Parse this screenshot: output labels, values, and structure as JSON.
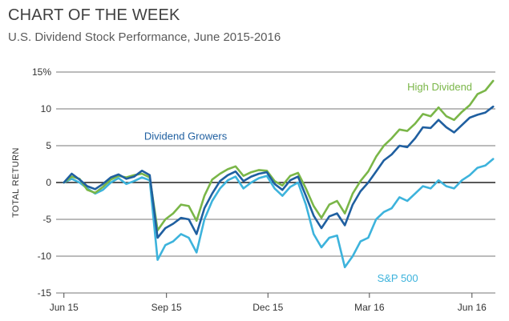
{
  "header": {
    "kicker": "CHART OF THE WEEK",
    "subtitle": "U.S. Dividend Stock Performance, June 2015-2016"
  },
  "chart_data": {
    "type": "line",
    "title": "CHART OF THE WEEK",
    "subtitle": "U.S. Dividend Stock Performance, June 2015-2016",
    "xlabel": "",
    "ylabel": "TOTAL RETURN",
    "ylim": [
      -15,
      15
    ],
    "xlim": [
      "2015-05-25",
      "2016-06-22"
    ],
    "y_ticks": [
      -15,
      -10,
      -5,
      0,
      5,
      10,
      15
    ],
    "y_tick_labels": [
      "-15",
      "-10",
      "-5",
      "0",
      "5",
      "10",
      "15%"
    ],
    "x_ticks": [
      "2015-06-01",
      "2015-09-01",
      "2015-12-01",
      "2016-03-01",
      "2016-06-01"
    ],
    "x_tick_labels": [
      "Jun 15",
      "Sep 15",
      "Dec 15",
      "Mar 16",
      "Jun 16"
    ],
    "grid": "horizontal",
    "legend": "inline labels",
    "series": [
      {
        "name": "High Dividend",
        "color": "#7ab648",
        "points": [
          [
            "2015-06-01",
            0
          ],
          [
            "2015-06-08",
            0.8
          ],
          [
            "2015-06-15",
            0.5
          ],
          [
            "2015-06-22",
            -1.0
          ],
          [
            "2015-06-29",
            -1.4
          ],
          [
            "2015-07-06",
            -0.6
          ],
          [
            "2015-07-13",
            0.4
          ],
          [
            "2015-07-20",
            0.9
          ],
          [
            "2015-07-27",
            0.7
          ],
          [
            "2015-08-03",
            1.0
          ],
          [
            "2015-08-10",
            1.2
          ],
          [
            "2015-08-17",
            0.7
          ],
          [
            "2015-08-24",
            -6.5
          ],
          [
            "2015-08-31",
            -5.0
          ],
          [
            "2015-09-07",
            -4.2
          ],
          [
            "2015-09-14",
            -3.0
          ],
          [
            "2015-09-21",
            -3.2
          ],
          [
            "2015-09-28",
            -5.2
          ],
          [
            "2015-10-05",
            -1.8
          ],
          [
            "2015-10-12",
            0.4
          ],
          [
            "2015-10-19",
            1.2
          ],
          [
            "2015-10-26",
            1.8
          ],
          [
            "2015-11-02",
            2.2
          ],
          [
            "2015-11-09",
            0.9
          ],
          [
            "2015-11-16",
            1.4
          ],
          [
            "2015-11-23",
            1.7
          ],
          [
            "2015-11-30",
            1.6
          ],
          [
            "2015-12-07",
            0.2
          ],
          [
            "2015-12-14",
            -0.4
          ],
          [
            "2015-12-21",
            0.9
          ],
          [
            "2015-12-28",
            1.3
          ],
          [
            "2016-01-04",
            -0.8
          ],
          [
            "2016-01-11",
            -3.2
          ],
          [
            "2016-01-18",
            -4.8
          ],
          [
            "2016-01-25",
            -3.0
          ],
          [
            "2016-02-01",
            -2.5
          ],
          [
            "2016-02-08",
            -4.2
          ],
          [
            "2016-02-15",
            -1.5
          ],
          [
            "2016-02-22",
            0.2
          ],
          [
            "2016-02-29",
            1.5
          ],
          [
            "2016-03-07",
            3.5
          ],
          [
            "2016-03-14",
            5.0
          ],
          [
            "2016-03-21",
            6.0
          ],
          [
            "2016-03-28",
            7.2
          ],
          [
            "2016-04-04",
            7.0
          ],
          [
            "2016-04-11",
            8.0
          ],
          [
            "2016-04-18",
            9.3
          ],
          [
            "2016-04-25",
            9.0
          ],
          [
            "2016-05-02",
            10.2
          ],
          [
            "2016-05-09",
            9.0
          ],
          [
            "2016-05-16",
            8.5
          ],
          [
            "2016-05-23",
            9.6
          ],
          [
            "2016-05-30",
            10.5
          ],
          [
            "2016-06-06",
            12.0
          ],
          [
            "2016-06-13",
            12.5
          ],
          [
            "2016-06-20",
            13.8
          ]
        ]
      },
      {
        "name": "Dividend Growers",
        "color": "#1f5fa0",
        "points": [
          [
            "2015-06-01",
            0
          ],
          [
            "2015-06-08",
            1.2
          ],
          [
            "2015-06-15",
            0.4
          ],
          [
            "2015-06-22",
            -0.5
          ],
          [
            "2015-06-29",
            -0.9
          ],
          [
            "2015-07-06",
            -0.2
          ],
          [
            "2015-07-13",
            0.7
          ],
          [
            "2015-07-20",
            1.1
          ],
          [
            "2015-07-27",
            0.5
          ],
          [
            "2015-08-03",
            0.8
          ],
          [
            "2015-08-10",
            1.6
          ],
          [
            "2015-08-17",
            1.0
          ],
          [
            "2015-08-24",
            -7.5
          ],
          [
            "2015-08-31",
            -6.2
          ],
          [
            "2015-09-07",
            -5.6
          ],
          [
            "2015-09-14",
            -4.8
          ],
          [
            "2015-09-21",
            -5.0
          ],
          [
            "2015-09-28",
            -7.0
          ],
          [
            "2015-10-05",
            -3.5
          ],
          [
            "2015-10-12",
            -1.5
          ],
          [
            "2015-10-19",
            0.2
          ],
          [
            "2015-10-26",
            1.0
          ],
          [
            "2015-11-02",
            1.5
          ],
          [
            "2015-11-09",
            0.2
          ],
          [
            "2015-11-16",
            0.8
          ],
          [
            "2015-11-23",
            1.2
          ],
          [
            "2015-11-30",
            1.4
          ],
          [
            "2015-12-07",
            -0.2
          ],
          [
            "2015-12-14",
            -1.0
          ],
          [
            "2015-12-21",
            0.3
          ],
          [
            "2015-12-28",
            0.8
          ],
          [
            "2016-01-04",
            -1.8
          ],
          [
            "2016-01-11",
            -4.5
          ],
          [
            "2016-01-18",
            -6.2
          ],
          [
            "2016-01-25",
            -4.6
          ],
          [
            "2016-02-01",
            -4.2
          ],
          [
            "2016-02-08",
            -5.8
          ],
          [
            "2016-02-15",
            -3.0
          ],
          [
            "2016-02-22",
            -1.2
          ],
          [
            "2016-02-29",
            0.0
          ],
          [
            "2016-03-07",
            1.5
          ],
          [
            "2016-03-14",
            3.0
          ],
          [
            "2016-03-21",
            3.8
          ],
          [
            "2016-03-28",
            5.0
          ],
          [
            "2016-04-04",
            4.8
          ],
          [
            "2016-04-11",
            6.0
          ],
          [
            "2016-04-18",
            7.5
          ],
          [
            "2016-04-25",
            7.4
          ],
          [
            "2016-05-02",
            8.5
          ],
          [
            "2016-05-09",
            7.5
          ],
          [
            "2016-05-16",
            6.8
          ],
          [
            "2016-05-23",
            7.8
          ],
          [
            "2016-05-30",
            8.8
          ],
          [
            "2016-06-06",
            9.2
          ],
          [
            "2016-06-13",
            9.5
          ],
          [
            "2016-06-20",
            10.3
          ]
        ]
      },
      {
        "name": "S&P 500",
        "color": "#3db3dc",
        "points": [
          [
            "2015-06-01",
            0
          ],
          [
            "2015-06-08",
            0.5
          ],
          [
            "2015-06-15",
            0.0
          ],
          [
            "2015-06-22",
            -0.8
          ],
          [
            "2015-06-29",
            -1.5
          ],
          [
            "2015-07-06",
            -1.0
          ],
          [
            "2015-07-13",
            0.0
          ],
          [
            "2015-07-20",
            0.6
          ],
          [
            "2015-07-27",
            -0.2
          ],
          [
            "2015-08-03",
            0.2
          ],
          [
            "2015-08-10",
            0.7
          ],
          [
            "2015-08-17",
            0.3
          ],
          [
            "2015-08-24",
            -10.5
          ],
          [
            "2015-08-31",
            -8.5
          ],
          [
            "2015-09-07",
            -8.0
          ],
          [
            "2015-09-14",
            -7.0
          ],
          [
            "2015-09-21",
            -7.5
          ],
          [
            "2015-09-28",
            -9.5
          ],
          [
            "2015-10-05",
            -5.0
          ],
          [
            "2015-10-12",
            -2.5
          ],
          [
            "2015-10-19",
            -0.8
          ],
          [
            "2015-10-26",
            0.3
          ],
          [
            "2015-11-02",
            0.8
          ],
          [
            "2015-11-09",
            -0.8
          ],
          [
            "2015-11-16",
            0.0
          ],
          [
            "2015-11-23",
            0.6
          ],
          [
            "2015-11-30",
            0.9
          ],
          [
            "2015-12-07",
            -0.8
          ],
          [
            "2015-12-14",
            -1.8
          ],
          [
            "2015-12-21",
            -0.6
          ],
          [
            "2015-12-28",
            0.0
          ],
          [
            "2016-01-04",
            -3.0
          ],
          [
            "2016-01-11",
            -7.0
          ],
          [
            "2016-01-18",
            -8.8
          ],
          [
            "2016-01-25",
            -7.5
          ],
          [
            "2016-02-01",
            -7.2
          ],
          [
            "2016-02-08",
            -11.5
          ],
          [
            "2016-02-15",
            -10.0
          ],
          [
            "2016-02-22",
            -8.0
          ],
          [
            "2016-02-29",
            -7.5
          ],
          [
            "2016-03-07",
            -5.0
          ],
          [
            "2016-03-14",
            -4.0
          ],
          [
            "2016-03-21",
            -3.5
          ],
          [
            "2016-03-28",
            -2.0
          ],
          [
            "2016-04-04",
            -2.5
          ],
          [
            "2016-04-11",
            -1.5
          ],
          [
            "2016-04-18",
            -0.5
          ],
          [
            "2016-04-25",
            -0.8
          ],
          [
            "2016-05-02",
            0.3
          ],
          [
            "2016-05-09",
            -0.5
          ],
          [
            "2016-05-16",
            -0.8
          ],
          [
            "2016-05-23",
            0.3
          ],
          [
            "2016-05-30",
            1.0
          ],
          [
            "2016-06-06",
            2.0
          ],
          [
            "2016-06-13",
            2.3
          ],
          [
            "2016-06-20",
            3.2
          ]
        ]
      }
    ],
    "annotations": [
      {
        "text": "High Dividend",
        "series": "High Dividend",
        "near": [
          "2016-04-04",
          12.5
        ]
      },
      {
        "text": "Dividend Growers",
        "series": "Dividend Growers",
        "near": [
          "2015-08-12",
          5.8
        ]
      },
      {
        "text": "S&P 500",
        "series": "S&P 500",
        "near": [
          "2016-03-08",
          -13.5
        ]
      }
    ]
  }
}
